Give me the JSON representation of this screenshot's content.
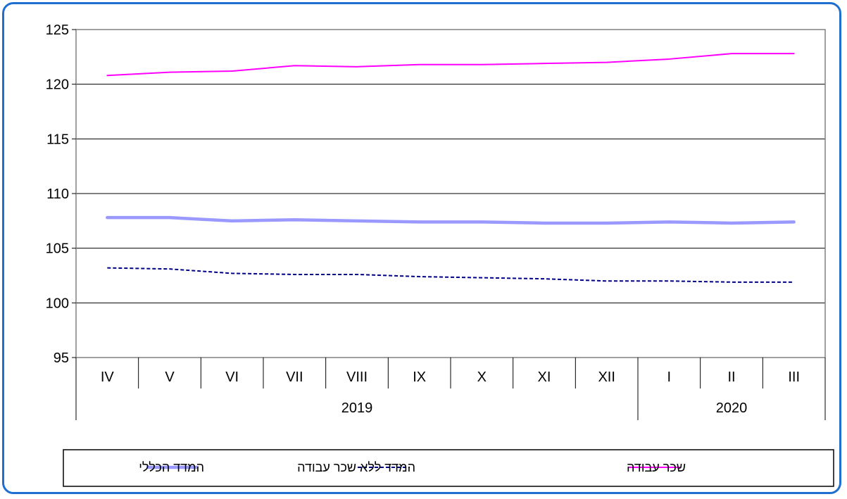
{
  "chart_data": {
    "type": "line",
    "categories": [
      "IV",
      "V",
      "VI",
      "VII",
      "VIII",
      "IX",
      "X",
      "XI",
      "XII",
      "I",
      "II",
      "III"
    ],
    "year_groups": [
      {
        "label": "2019",
        "count": 9
      },
      {
        "label": "2020",
        "count": 3
      }
    ],
    "ylim": [
      95,
      125
    ],
    "yticks": [
      95,
      100,
      105,
      110,
      115,
      120,
      125
    ],
    "grid": true,
    "legend_position": "bottom",
    "series": [
      {
        "name": "המדד הכללי",
        "color": "#9999ff",
        "style": "solid-thick",
        "values": [
          107.8,
          107.8,
          107.5,
          107.6,
          107.5,
          107.4,
          107.4,
          107.3,
          107.3,
          107.4,
          107.3,
          107.4
        ]
      },
      {
        "name": "המדד ללא שכר עבודה",
        "color": "#000080",
        "style": "dashed",
        "values": [
          103.2,
          103.1,
          102.7,
          102.6,
          102.6,
          102.4,
          102.3,
          102.2,
          102.0,
          102.0,
          101.9,
          101.9
        ]
      },
      {
        "name": "שכר עבודה",
        "color": "#ff00ff",
        "style": "solid-thin",
        "values": [
          120.8,
          121.1,
          121.2,
          121.7,
          121.6,
          121.8,
          121.8,
          121.9,
          122.0,
          122.3,
          122.8,
          122.8
        ]
      }
    ]
  }
}
